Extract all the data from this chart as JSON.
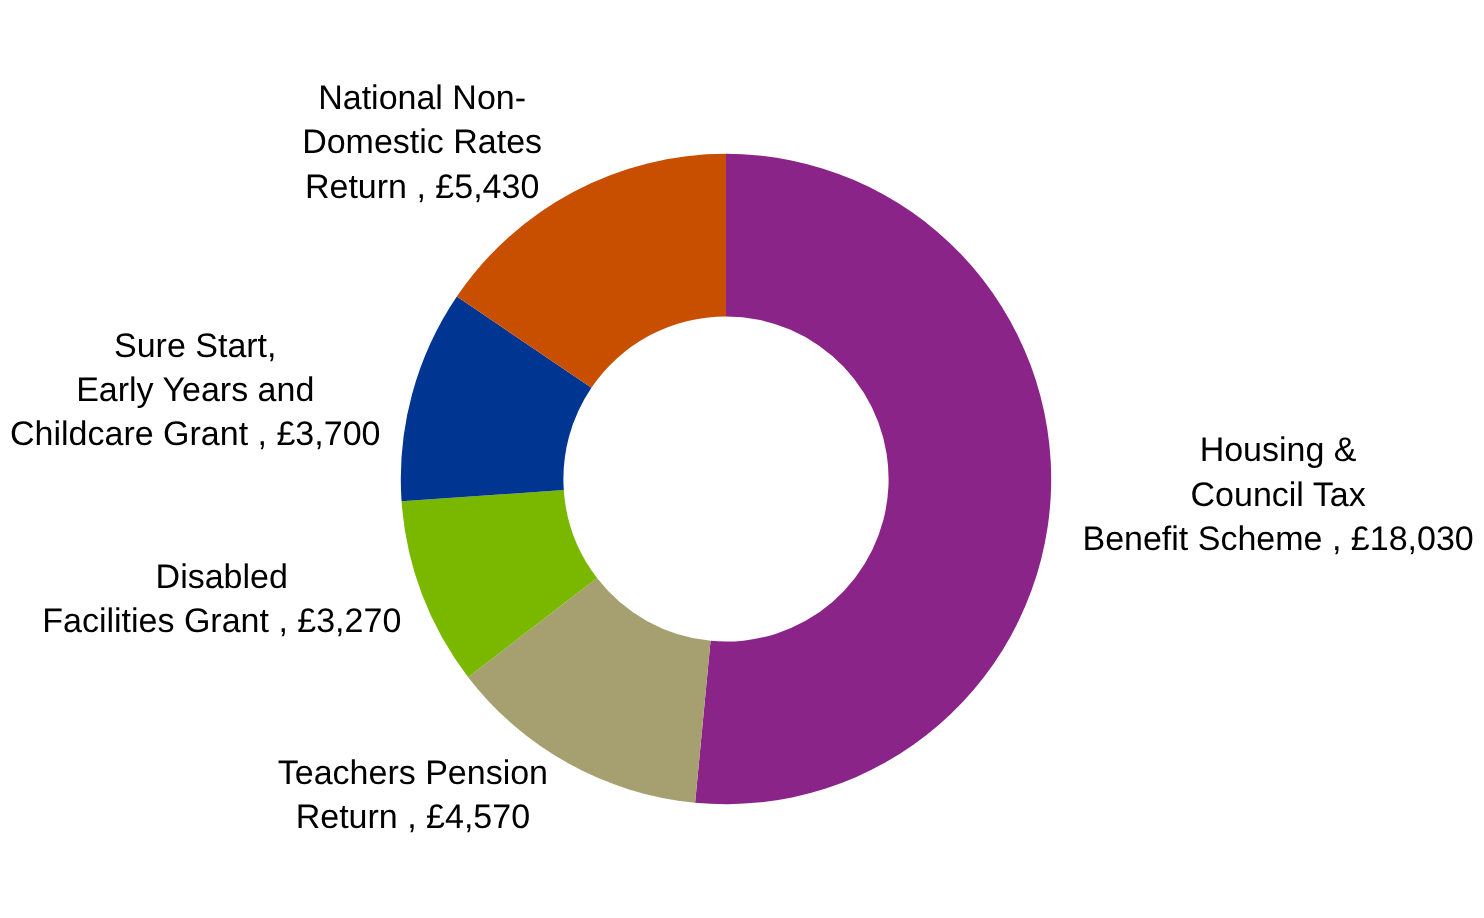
{
  "chart_data": {
    "type": "donut",
    "legend": false,
    "categories": [
      "Housing & Council Tax Benefit Scheme",
      "Teachers Pension Return",
      "Disabled Facilities Grant",
      "Sure Start, Early Years and Childcare Grant",
      "National Non-Domestic Rates Return"
    ],
    "values": [
      18030,
      4570,
      3270,
      3700,
      5430
    ],
    "value_labels": [
      "£18,030",
      "£4,570",
      "£3,270",
      "£3,700",
      "£5,430"
    ],
    "colors": [
      "#8b2489",
      "#a69f70",
      "#7ab800",
      "#003592",
      "#c94f00"
    ]
  }
}
